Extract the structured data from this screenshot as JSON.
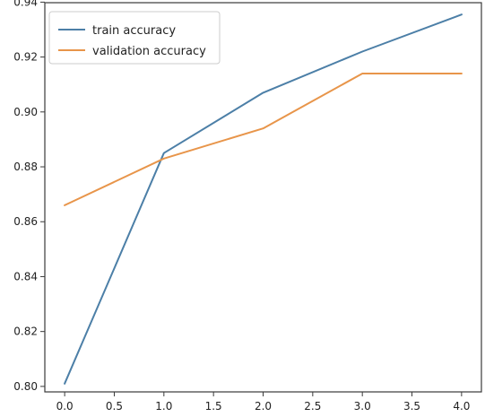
{
  "chart_data": {
    "type": "line",
    "title": "",
    "xlabel": "",
    "ylabel": "",
    "x": [
      0.0,
      1.0,
      2.0,
      3.0,
      4.0
    ],
    "series": [
      {
        "name": "train accuracy",
        "color": "#4c7fa7",
        "values": [
          0.801,
          0.885,
          0.907,
          0.922,
          0.9355
        ]
      },
      {
        "name": "validation accuracy",
        "color": "#e8954a",
        "values": [
          0.866,
          0.883,
          0.894,
          0.914,
          0.914
        ]
      }
    ],
    "xlim": [
      -0.2,
      4.2
    ],
    "ylim": [
      0.798,
      0.9398
    ],
    "xticks": [
      0.0,
      0.5,
      1.0,
      1.5,
      2.0,
      2.5,
      3.0,
      3.5,
      4.0
    ],
    "xtick_labels": [
      "0.0",
      "0.5",
      "1.0",
      "1.5",
      "2.0",
      "2.5",
      "3.0",
      "3.5",
      "4.0"
    ],
    "yticks": [
      0.8,
      0.82,
      0.84,
      0.86,
      0.88,
      0.9,
      0.92,
      0.94
    ],
    "ytick_labels": [
      "0.80",
      "0.82",
      "0.84",
      "0.86",
      "0.88",
      "0.90",
      "0.92",
      "0.94"
    ],
    "grid": false,
    "legend": {
      "position": "top-left",
      "entries": [
        "train accuracy",
        "validation accuracy"
      ]
    }
  }
}
